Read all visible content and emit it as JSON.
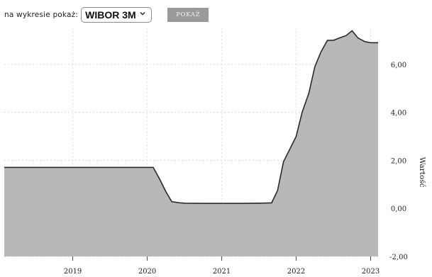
{
  "controls": {
    "label": "na wykresie pokaż:",
    "select_value": "WIBOR 3M",
    "button_label": "POKAŻ"
  },
  "chart_data": {
    "type": "area",
    "title": "",
    "ylabel": "Wartość",
    "y_axis_position": "right",
    "ylim": [
      -2,
      7.5
    ],
    "yticks": [
      -2,
      0,
      2,
      4,
      6
    ],
    "ytick_labels": [
      "-2,00",
      "0,00",
      "2,00",
      "4,00",
      "6,00"
    ],
    "xlim": [
      2018.08,
      2023.1
    ],
    "xticks": [
      2019,
      2020,
      2021,
      2022,
      2023
    ],
    "xtick_labels": [
      "2019",
      "2020",
      "2021",
      "2022",
      "2023"
    ],
    "grid": true,
    "fill_color": "#b8b8b8",
    "line_color": "#2a2a2a",
    "series": [
      {
        "x": [
          2018.08,
          2020.08,
          2020.17,
          2020.25,
          2020.33,
          2020.42,
          2020.5,
          2020.75,
          2021.0,
          2021.25,
          2021.5,
          2021.67,
          2021.75,
          2021.83,
          2021.92,
          2022.0,
          2022.08,
          2022.17,
          2022.25,
          2022.33,
          2022.42,
          2022.5,
          2022.58,
          2022.67,
          2022.75,
          2022.83,
          2022.92,
          2023.0,
          2023.1
        ],
        "y": [
          1.71,
          1.71,
          1.2,
          0.7,
          0.28,
          0.24,
          0.22,
          0.21,
          0.21,
          0.21,
          0.22,
          0.23,
          0.75,
          1.95,
          2.5,
          3.0,
          4.0,
          4.8,
          5.9,
          6.5,
          7.0,
          7.0,
          7.1,
          7.2,
          7.4,
          7.1,
          6.95,
          6.9,
          6.9
        ]
      }
    ]
  }
}
